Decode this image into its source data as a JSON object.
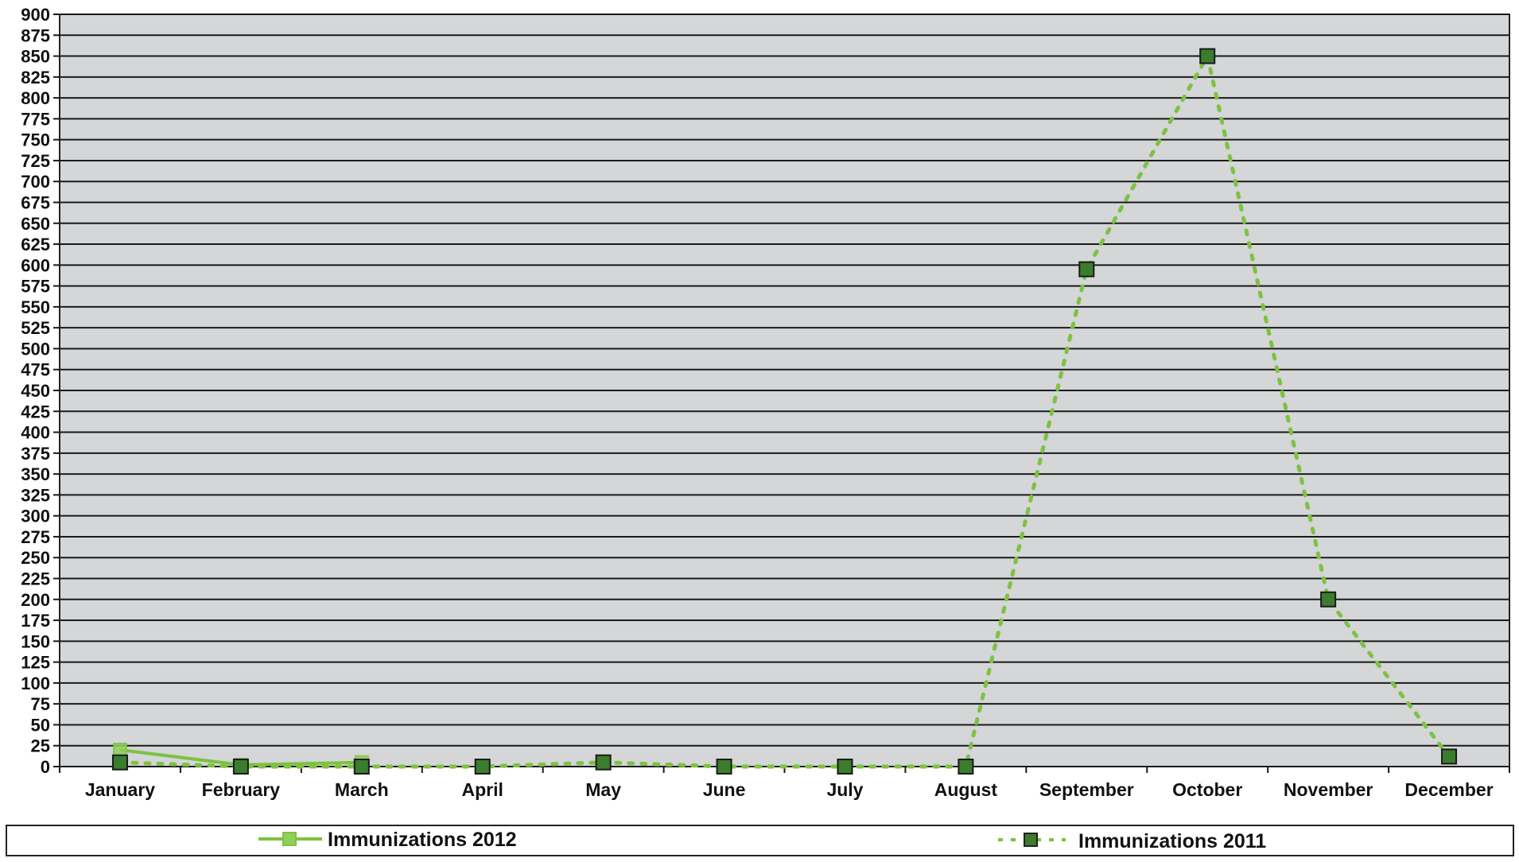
{
  "chart_data": {
    "type": "line",
    "categories": [
      "January",
      "February",
      "March",
      "April",
      "May",
      "June",
      "July",
      "August",
      "September",
      "October",
      "November",
      "December"
    ],
    "ylim": [
      0,
      900
    ],
    "ytick_step": 25,
    "y_ticks": [
      "900",
      "875",
      "850",
      "825",
      "800",
      "775",
      "750",
      "725",
      "700",
      "675",
      "650",
      "625",
      "600",
      "575",
      "550",
      "525",
      "500",
      "475",
      "450",
      "425",
      "400",
      "375",
      "350",
      "325",
      "300",
      "275",
      "250",
      "225",
      "200",
      "175",
      "150",
      "125",
      "100",
      "75",
      "50",
      "25",
      "0"
    ],
    "grid": true,
    "legend_position": "bottom",
    "series": [
      {
        "name": "Immunizations 2012",
        "color": "#7dc242",
        "style": "solid",
        "values": [
          20,
          2,
          5,
          null,
          null,
          null,
          null,
          null,
          null,
          null,
          null,
          null
        ]
      },
      {
        "name": "Immunizations 2011",
        "color": "#7dc242",
        "marker_color": "#3a7d2c",
        "style": "dotted",
        "values": [
          5,
          0,
          0,
          0,
          5,
          0,
          0,
          0,
          595,
          850,
          200,
          12
        ]
      }
    ]
  }
}
